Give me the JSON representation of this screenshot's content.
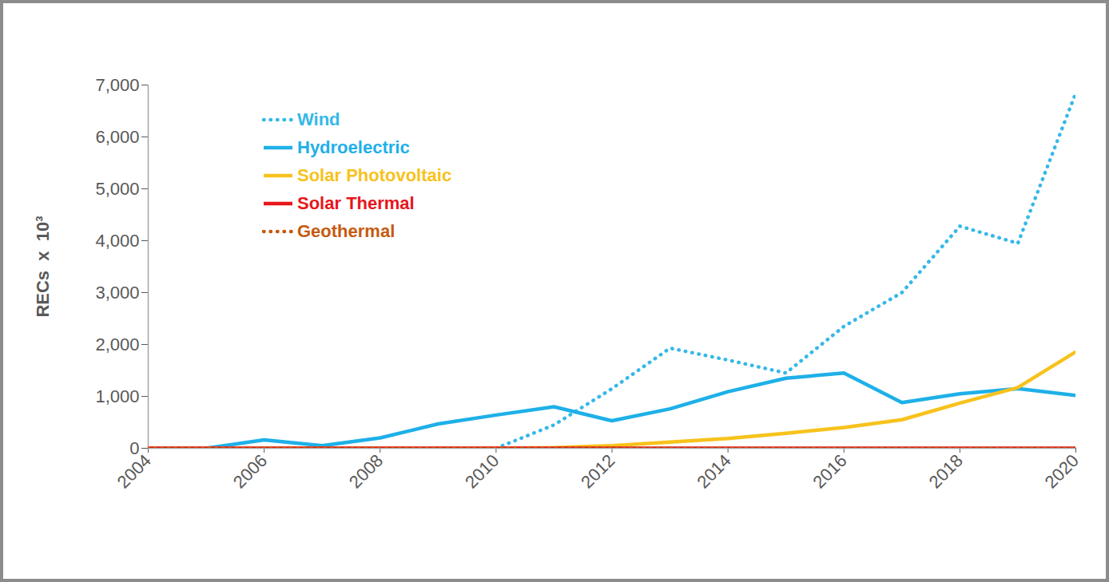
{
  "chart_data": {
    "type": "line",
    "y_label": "RECs  x  10³",
    "x": [
      2004,
      2005,
      2006,
      2007,
      2008,
      2009,
      2010,
      2011,
      2012,
      2013,
      2014,
      2015,
      2016,
      2017,
      2018,
      2019,
      2020
    ],
    "xlim": [
      2004,
      2020
    ],
    "xticks": [
      2004,
      2006,
      2008,
      2010,
      2012,
      2014,
      2016,
      2018,
      2020
    ],
    "ylim": [
      0,
      7000
    ],
    "yticks": [
      0,
      {
        "value": 1000,
        "label": "1,000"
      },
      {
        "value": 2000,
        "label": "2,000"
      },
      {
        "value": 3000,
        "label": "3,000"
      },
      {
        "value": 4000,
        "label": "4,000"
      },
      {
        "value": 5000,
        "label": "5,000"
      },
      {
        "value": 6000,
        "label": "6,000"
      },
      {
        "value": 7000,
        "label": "7,000"
      }
    ],
    "grid": false,
    "legend": "top-left",
    "series": [
      {
        "name": "Wind",
        "color": "#35b8e8",
        "line_style": "dotted",
        "values": [
          null,
          null,
          null,
          null,
          null,
          null,
          0,
          450,
          1150,
          1930,
          1700,
          1450,
          2350,
          3000,
          4280,
          3950,
          6850
        ]
      },
      {
        "name": "Hydroelectric",
        "color": "#1eb0e8",
        "line_style": "solid",
        "values": [
          0,
          0,
          160,
          50,
          200,
          470,
          640,
          800,
          530,
          760,
          1090,
          1350,
          1450,
          880,
          1050,
          1150,
          1020
        ]
      },
      {
        "name": "Solar Photovoltaic",
        "color": "#f7c21c",
        "line_style": "solid",
        "values": [
          0,
          0,
          0,
          0,
          0,
          0,
          0,
          10,
          50,
          120,
          190,
          290,
          400,
          550,
          870,
          1170,
          1860
        ]
      },
      {
        "name": "Solar Thermal",
        "color": "#e8161b",
        "line_style": "solid",
        "values": [
          0,
          0,
          0,
          0,
          0,
          0,
          0,
          0,
          0,
          0,
          0,
          0,
          0,
          0,
          0,
          0,
          0
        ]
      },
      {
        "name": "Geothermal",
        "color": "#c55a11",
        "line_style": "dotted",
        "values": [
          0,
          0,
          0,
          0,
          0,
          0,
          0,
          0,
          0,
          0,
          0,
          0,
          0,
          0,
          0,
          0,
          0
        ]
      }
    ]
  }
}
